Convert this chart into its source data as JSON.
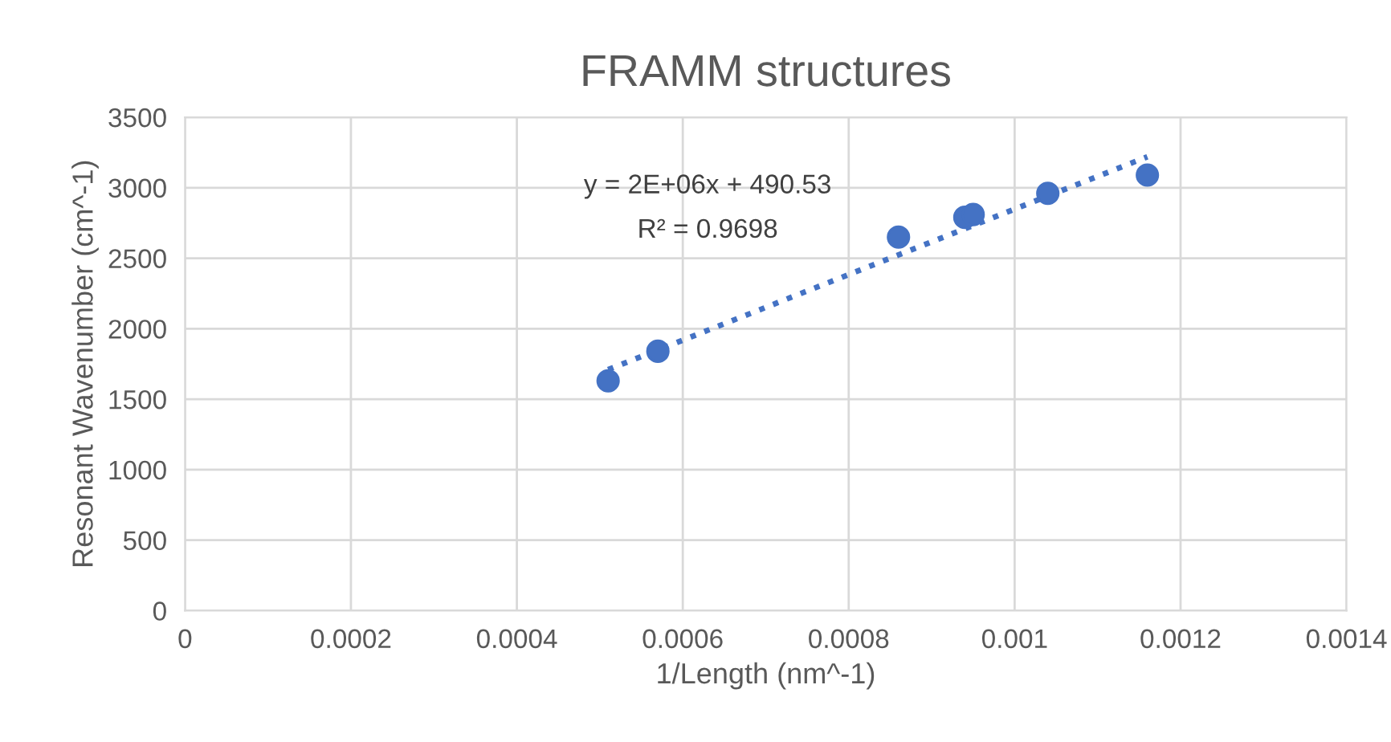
{
  "chart_data": {
    "type": "scatter",
    "title": "FRAMM structures",
    "xlabel": "1/Length (nm^-1)",
    "ylabel": "Resonant Wavenumber (cm^-1)",
    "series": [
      {
        "color": "#4472c4",
        "marker": "circle",
        "x": [
          0.00051,
          0.00057,
          0.00086,
          0.00094,
          0.00095,
          0.00104,
          0.00116
        ],
        "values": [
          1630,
          1840,
          2650,
          2790,
          2810,
          2960,
          3090
        ]
      },
      {
        "type": "line",
        "color": "#4472c4",
        "line_style": "dotted",
        "marker": "none",
        "x": [
          0.00051,
          0.00116
        ],
        "values": [
          1710,
          3220
        ]
      }
    ],
    "annotations": [
      "y = 2E+06x + 490.53",
      "R² = 0.9698"
    ],
    "xlim": [
      0,
      0.0014
    ],
    "xticks": [
      0,
      0.0002,
      0.0004,
      0.0006,
      0.0008,
      0.001,
      0.0012,
      0.0014
    ],
    "ylim": [
      0,
      3500
    ],
    "yticks": [
      0,
      500,
      1000,
      1500,
      2000,
      2500,
      3000,
      3500
    ],
    "grid": true,
    "legend": false
  }
}
